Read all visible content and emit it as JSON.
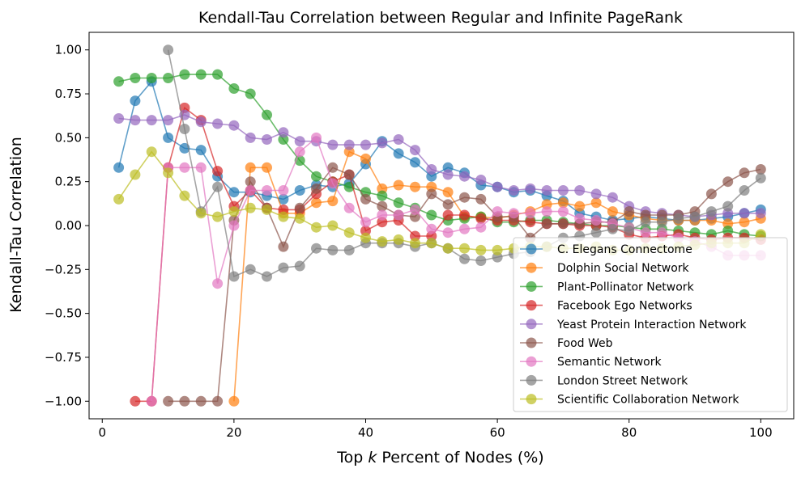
{
  "chart_data": {
    "type": "line",
    "title": "Kendall-Tau Correlation between Regular and Infinite PageRank",
    "xlabel_prefix": "Top ",
    "xlabel_var": "k",
    "xlabel_suffix": " Percent of Nodes (%)",
    "ylabel": "Kendall-Tau Correlation",
    "xlim": [
      -2,
      105
    ],
    "ylim": [
      -1.1,
      1.1
    ],
    "xticks": [
      0,
      20,
      40,
      60,
      80,
      100
    ],
    "yticks": [
      -1.0,
      -0.75,
      -0.5,
      -0.25,
      0.0,
      0.25,
      0.5,
      0.75,
      1.0
    ],
    "xtick_labels": [
      "0",
      "20",
      "40",
      "60",
      "80",
      "100"
    ],
    "ytick_labels": [
      "−1.00",
      "−0.75",
      "−0.50",
      "−0.25",
      "0.00",
      "0.25",
      "0.50",
      "0.75",
      "1.00"
    ],
    "legend_position": "lower-right",
    "x": [
      2.5,
      5,
      7.5,
      10,
      12.5,
      15,
      17.5,
      20,
      22.5,
      25,
      27.5,
      30,
      32.5,
      35,
      37.5,
      40,
      42.5,
      45,
      47.5,
      50,
      52.5,
      55,
      57.5,
      60,
      62.5,
      65,
      67.5,
      70,
      72.5,
      75,
      77.5,
      80,
      82.5,
      85,
      87.5,
      90,
      92.5,
      95,
      97.5,
      100
    ],
    "series": [
      {
        "name": "C. Elegans Connectome",
        "color": "#1f77b4",
        "values": [
          0.33,
          0.71,
          0.82,
          0.5,
          0.44,
          0.43,
          0.28,
          0.19,
          0.19,
          0.17,
          0.15,
          0.2,
          0.23,
          0.22,
          0.24,
          0.35,
          0.48,
          0.41,
          0.36,
          0.28,
          0.33,
          0.3,
          0.23,
          0.22,
          0.19,
          0.2,
          0.17,
          0.14,
          0.07,
          0.05,
          0.03,
          0.04,
          0.05,
          0.04,
          0.03,
          0.03,
          0.04,
          0.05,
          0.07,
          0.09
        ]
      },
      {
        "name": "Dolphin Social Network",
        "color": "#ff7f0e",
        "values": [
          null,
          null,
          null,
          null,
          null,
          null,
          null,
          -1.0,
          0.33,
          0.33,
          0.07,
          0.07,
          0.13,
          0.14,
          0.42,
          0.38,
          0.21,
          0.23,
          0.22,
          0.22,
          0.19,
          0.05,
          0.05,
          0.04,
          0.06,
          0.08,
          0.12,
          0.13,
          0.11,
          0.13,
          0.08,
          0.06,
          0.04,
          0.03,
          0.03,
          0.03,
          0.03,
          0.01,
          0.02,
          0.04
        ]
      },
      {
        "name": "Plant-Pollinator Network",
        "color": "#2ca02c",
        "values": [
          0.82,
          0.84,
          0.84,
          0.84,
          0.86,
          0.86,
          0.86,
          0.78,
          0.75,
          0.63,
          0.49,
          0.37,
          0.28,
          0.25,
          0.22,
          0.19,
          0.17,
          0.13,
          0.1,
          0.06,
          0.03,
          0.04,
          0.05,
          0.02,
          0.02,
          0.03,
          0.03,
          0.02,
          0.01,
          0.0,
          0.0,
          -0.01,
          -0.02,
          -0.02,
          -0.03,
          -0.04,
          -0.05,
          -0.03,
          -0.05,
          -0.06
        ]
      },
      {
        "name": "Facebook Ego Networks",
        "color": "#d62728",
        "values": [
          null,
          -1.0,
          -1.0,
          0.33,
          0.67,
          0.6,
          0.31,
          0.11,
          0.2,
          0.1,
          0.09,
          0.09,
          0.18,
          0.25,
          0.29,
          -0.03,
          0.02,
          0.03,
          -0.06,
          -0.06,
          0.06,
          0.06,
          0.04,
          0.03,
          0.03,
          0.02,
          0.01,
          0.01,
          0.0,
          0.0,
          -0.01,
          -0.05,
          -0.07,
          -0.06,
          -0.05,
          -0.07,
          -0.08,
          -0.07,
          -0.07,
          -0.08
        ]
      },
      {
        "name": "Yeast Protein Interaction Network",
        "color": "#9467bd",
        "values": [
          0.61,
          0.6,
          0.6,
          0.6,
          0.63,
          0.59,
          0.58,
          0.57,
          0.5,
          0.49,
          0.53,
          0.48,
          0.48,
          0.46,
          0.46,
          0.46,
          0.47,
          0.49,
          0.43,
          0.32,
          0.29,
          0.28,
          0.26,
          0.22,
          0.2,
          0.21,
          0.2,
          0.2,
          0.2,
          0.18,
          0.16,
          0.11,
          0.08,
          0.07,
          0.06,
          0.05,
          0.06,
          0.07,
          0.07,
          0.07
        ]
      },
      {
        "name": "Food Web",
        "color": "#8c564b",
        "values": [
          null,
          null,
          null,
          -1.0,
          -1.0,
          -1.0,
          -1.0,
          0.03,
          0.25,
          0.1,
          -0.12,
          0.1,
          0.21,
          0.33,
          0.29,
          0.15,
          0.11,
          0.06,
          0.05,
          0.18,
          0.12,
          0.16,
          0.15,
          0.05,
          0.05,
          -0.07,
          0.01,
          0.01,
          0.01,
          0.02,
          0.02,
          0.08,
          0.06,
          0.06,
          0.06,
          0.08,
          0.18,
          0.25,
          0.3,
          0.32
        ]
      },
      {
        "name": "Semantic Network",
        "color": "#e377c2",
        "values": [
          null,
          null,
          -1.0,
          0.33,
          0.33,
          0.33,
          -0.33,
          0.0,
          0.2,
          0.2,
          0.2,
          0.42,
          0.5,
          0.24,
          0.1,
          0.02,
          0.06,
          0.06,
          0.09,
          -0.02,
          -0.04,
          -0.02,
          -0.01,
          0.08,
          0.07,
          0.07,
          0.08,
          0.08,
          0.04,
          0.03,
          0.01,
          -0.01,
          -0.04,
          -0.04,
          -0.07,
          -0.09,
          -0.12,
          -0.17,
          -0.17,
          -0.17
        ]
      },
      {
        "name": "London Street Network",
        "color": "#7f7f7f",
        "values": [
          null,
          null,
          null,
          1.0,
          0.55,
          0.08,
          0.22,
          -0.29,
          -0.25,
          -0.29,
          -0.24,
          -0.23,
          -0.13,
          -0.14,
          -0.14,
          -0.1,
          -0.1,
          -0.1,
          -0.12,
          -0.1,
          -0.13,
          -0.19,
          -0.2,
          -0.18,
          -0.16,
          -0.15,
          -0.12,
          -0.07,
          -0.06,
          -0.04,
          -0.02,
          -0.03,
          0.02,
          0.02,
          0.04,
          0.05,
          0.08,
          0.11,
          0.2,
          0.27
        ]
      },
      {
        "name": "Scientific Collaboration Network",
        "color": "#bcbd22",
        "values": [
          0.15,
          0.29,
          0.42,
          0.3,
          0.17,
          0.07,
          0.05,
          0.08,
          0.1,
          0.09,
          0.05,
          0.04,
          -0.01,
          0.0,
          -0.04,
          -0.07,
          -0.09,
          -0.08,
          -0.1,
          -0.1,
          -0.13,
          -0.13,
          -0.14,
          -0.14,
          -0.13,
          -0.12,
          -0.12,
          -0.13,
          -0.13,
          -0.12,
          -0.14,
          -0.14,
          -0.13,
          -0.13,
          -0.12,
          -0.11,
          -0.1,
          -0.1,
          -0.1,
          -0.05
        ]
      }
    ]
  }
}
